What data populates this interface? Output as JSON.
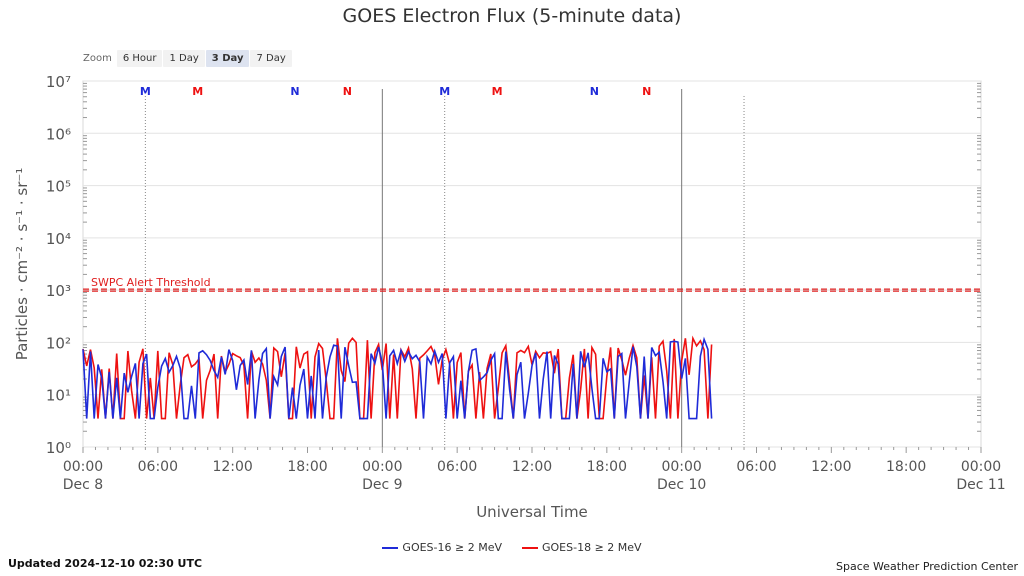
{
  "title": "GOES Electron Flux (5-minute data)",
  "zoom": {
    "label": "Zoom",
    "buttons": [
      {
        "label": "6 Hour",
        "active": false
      },
      {
        "label": "1 Day",
        "active": false
      },
      {
        "label": "3 Day",
        "active": true
      },
      {
        "label": "7 Day",
        "active": false
      }
    ]
  },
  "footer": {
    "updated": "Updated 2024-12-10 02:30 UTC",
    "credit": "Space Weather Prediction Center"
  },
  "colors": {
    "goes16": "#1f2bd8",
    "goes18": "#ee1111",
    "threshold": "#e02020"
  },
  "chart_data": {
    "type": "line",
    "ylabel": "Particles · cm⁻² · s⁻¹ · sr⁻¹",
    "xlabel": "Universal Time",
    "y_scale": "log",
    "ylim": [
      1,
      10000000
    ],
    "y_ticks": [
      "10⁰",
      "10¹",
      "10²",
      "10³",
      "10⁴",
      "10⁵",
      "10⁶",
      "10⁷"
    ],
    "xlim_hours": [
      0,
      72
    ],
    "x_ticks": [
      {
        "time": "00:00",
        "date": "Dec 8"
      },
      {
        "time": "06:00",
        "date": ""
      },
      {
        "time": "12:00",
        "date": ""
      },
      {
        "time": "18:00",
        "date": ""
      },
      {
        "time": "00:00",
        "date": "Dec 9"
      },
      {
        "time": "06:00",
        "date": ""
      },
      {
        "time": "12:00",
        "date": ""
      },
      {
        "time": "18:00",
        "date": ""
      },
      {
        "time": "00:00",
        "date": "Dec 10"
      },
      {
        "time": "06:00",
        "date": ""
      },
      {
        "time": "12:00",
        "date": ""
      },
      {
        "time": "18:00",
        "date": ""
      },
      {
        "time": "00:00",
        "date": "Dec 11"
      }
    ],
    "threshold": {
      "label": "SWPC Alert Threshold",
      "value": 1000
    },
    "sat_markers": [
      {
        "label": "M",
        "hour": 5.0,
        "series": "goes16"
      },
      {
        "label": "M",
        "hour": 9.2,
        "series": "goes18"
      },
      {
        "label": "N",
        "hour": 17.0,
        "series": "goes16"
      },
      {
        "label": "N",
        "hour": 21.2,
        "series": "goes18"
      },
      {
        "label": "M",
        "hour": 29.0,
        "series": "goes16"
      },
      {
        "label": "M",
        "hour": 33.2,
        "series": "goes18"
      },
      {
        "label": "N",
        "hour": 41.0,
        "series": "goes16"
      },
      {
        "label": "N",
        "hour": 45.2,
        "series": "goes18"
      }
    ],
    "dotted_lines_hours": [
      5.0,
      29.0,
      53.0
    ],
    "day_lines_hours": [
      24,
      48
    ],
    "series": [
      {
        "name": "GOES-16 ≥ 2 MeV",
        "key": "goes16",
        "hours": [
          0,
          2.5,
          5,
          7.5,
          10,
          12.5,
          15,
          17.5,
          20,
          22.5,
          25,
          27.5,
          30,
          32.5,
          35,
          37.5,
          40,
          42.5,
          45,
          47.5,
          50,
          50.6
        ],
        "values": [
          30,
          20,
          35,
          25,
          30,
          28,
          35,
          40,
          45,
          40,
          30,
          35,
          30,
          28,
          30,
          25,
          30,
          32,
          35,
          45,
          55,
          25
        ]
      },
      {
        "name": "GOES-18 ≥ 2 MeV",
        "key": "goes18",
        "hours": [
          0,
          2.5,
          5,
          7.5,
          10,
          12.5,
          15,
          17.5,
          20,
          22.5,
          25,
          27.5,
          30,
          32.5,
          35,
          37.5,
          40,
          42.5,
          45,
          47.5,
          50,
          50.6
        ],
        "values": [
          35,
          25,
          30,
          30,
          28,
          25,
          30,
          40,
          50,
          45,
          40,
          35,
          28,
          30,
          35,
          30,
          32,
          35,
          40,
          55,
          60,
          45
        ]
      }
    ],
    "legend_position": "bottom-center"
  }
}
